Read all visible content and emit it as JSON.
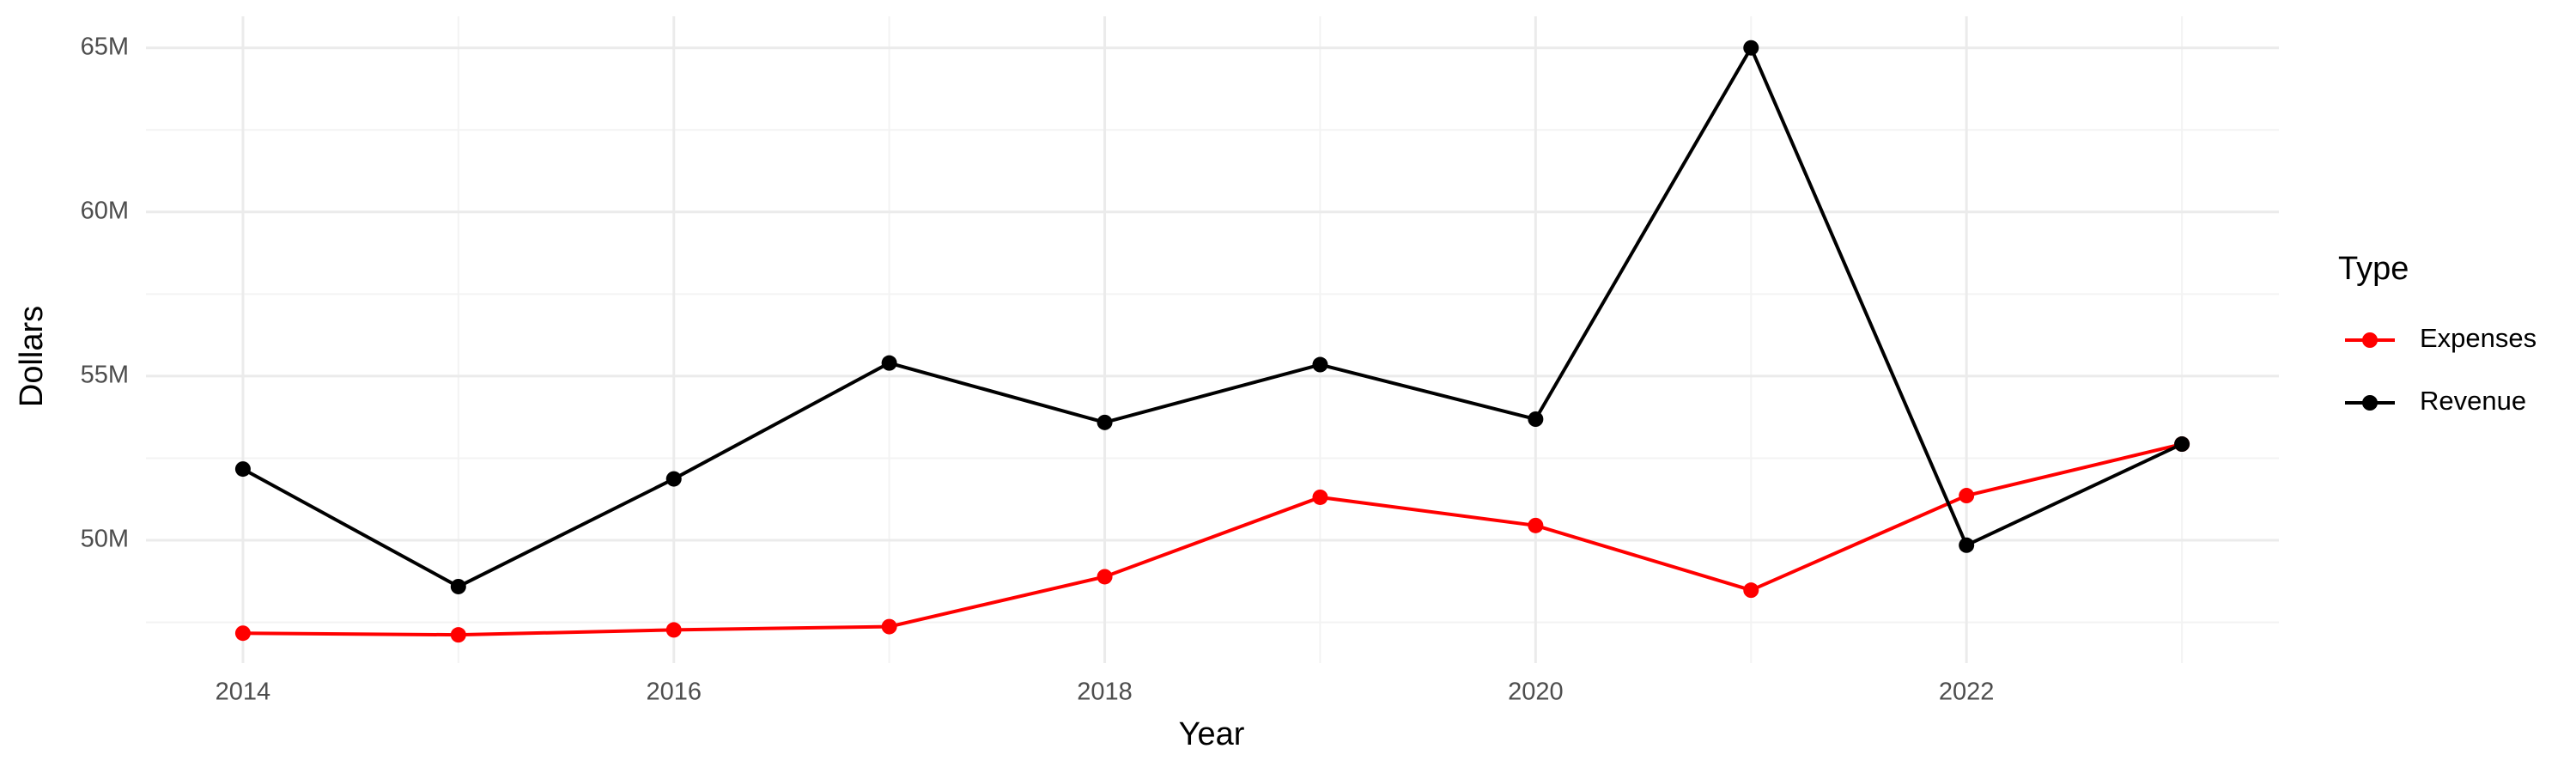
{
  "chart_data": {
    "type": "line",
    "x_label": "Year",
    "y_label": "Dollars",
    "x": [
      2014,
      2015,
      2016,
      2017,
      2018,
      2019,
      2020,
      2021,
      2022,
      2023
    ],
    "series": [
      {
        "name": "Expenses",
        "color": "#ff0000",
        "values": [
          47170000,
          47120000,
          47270000,
          47370000,
          48890000,
          51310000,
          50450000,
          48480000,
          51360000,
          52930000
        ]
      },
      {
        "name": "Revenue",
        "color": "#000000",
        "values": [
          52170000,
          48590000,
          51870000,
          55400000,
          53590000,
          55350000,
          53690000,
          65000000,
          49850000,
          52930000
        ]
      }
    ],
    "xlim": [
      2013.55,
      2023.45
    ],
    "xticks": [
      2014,
      2016,
      2018,
      2020,
      2022
    ],
    "ylim": [
      46260000,
      65960000
    ],
    "yticks": [
      {
        "value": 50000000,
        "label": "50M"
      },
      {
        "value": 55000000,
        "label": "55M"
      },
      {
        "value": 60000000,
        "label": "60M"
      },
      {
        "value": 65000000,
        "label": "65M"
      }
    ],
    "grid": true,
    "legend_title": "Type",
    "legend_position": "right"
  }
}
